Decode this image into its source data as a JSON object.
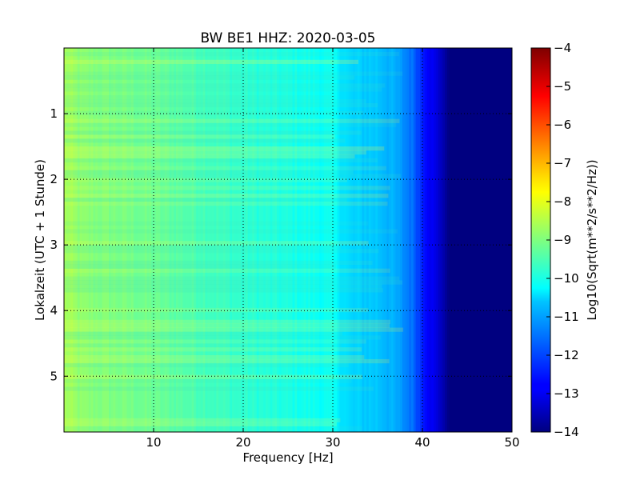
{
  "chart_data": {
    "type": "heatmap",
    "title": "BW BE1 HHZ: 2020-03-05",
    "xlabel": "Frequency [Hz]",
    "ylabel": "Lokalzeit (UTC + 1 Stunde)",
    "xlim": [
      0,
      50
    ],
    "ylim": [
      5.85,
      0.0
    ],
    "y_inverted": true,
    "x_ticks": [
      10,
      20,
      30,
      40,
      50
    ],
    "y_ticks": [
      1,
      2,
      3,
      4,
      5
    ],
    "grid": true,
    "colormap": "jet",
    "colorbar": {
      "label": "Log10(Sqrt(m**2/s**2/Hz))",
      "range": [
        -14,
        -4
      ],
      "ticks": [
        -4,
        -5,
        -6,
        -7,
        -8,
        -9,
        -10,
        -11,
        -12,
        -13,
        -14
      ]
    },
    "approx_value_profile_by_frequency": {
      "frequency_hz": [
        0,
        2,
        5,
        10,
        15,
        20,
        25,
        30,
        32,
        35,
        37,
        39,
        40,
        42,
        43,
        45,
        50
      ],
      "log10_amplitude": [
        -8.6,
        -8.9,
        -9.0,
        -9.2,
        -9.5,
        -9.8,
        -10.0,
        -10.2,
        -10.7,
        -10.8,
        -11.1,
        -11.7,
        -12.4,
        -13.3,
        -14.0,
        -14.0,
        -14.0
      ]
    }
  },
  "text": {
    "title": "BW BE1 HHZ: 2020-03-05",
    "xlabel": "Frequency [Hz]",
    "ylabel": "Lokalzeit (UTC + 1 Stunde)",
    "cbar_label": "Log10(Sqrt(m**2/s**2/Hz))"
  }
}
